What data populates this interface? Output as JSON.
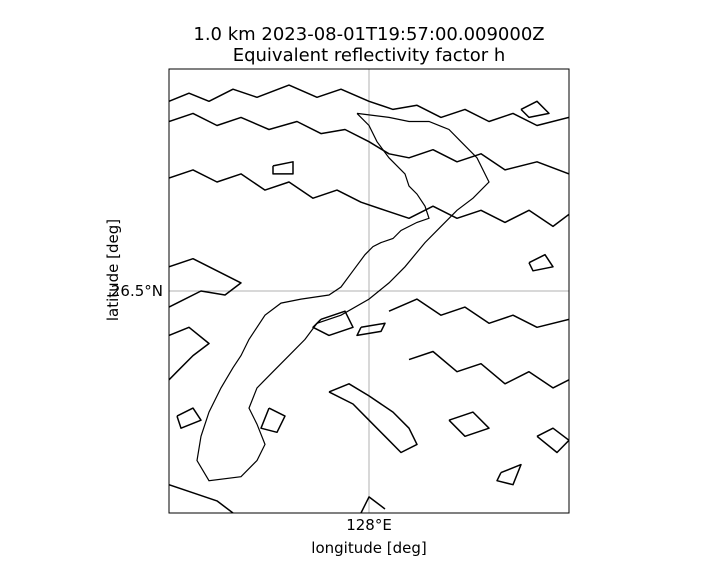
{
  "chart_data": {
    "type": "contour",
    "title_line1": "1.0 km 2023-08-01T19:57:00.009000Z",
    "title_line2": "Equivalent reflectivity factor h",
    "xlabel": "longitude [deg]",
    "ylabel": "latitude [deg]",
    "x_ticks": [
      {
        "value": 128.0,
        "label": "128°E"
      }
    ],
    "y_ticks": [
      {
        "value": 26.5,
        "label": "26.5°N"
      }
    ],
    "xlim": [
      127.5,
      128.5
    ],
    "ylim": [
      25.95,
      27.05
    ],
    "grid": true,
    "line_color": "#000000",
    "coastline": [
      [
        127.97,
        26.94
      ],
      [
        128.0,
        26.91
      ],
      [
        128.02,
        26.87
      ],
      [
        128.05,
        26.83
      ],
      [
        128.09,
        26.79
      ],
      [
        128.1,
        26.76
      ],
      [
        128.12,
        26.74
      ],
      [
        128.14,
        26.71
      ],
      [
        128.15,
        26.68
      ],
      [
        128.12,
        26.67
      ],
      [
        128.08,
        26.65
      ],
      [
        128.06,
        26.63
      ],
      [
        128.03,
        26.62
      ],
      [
        128.01,
        26.61
      ],
      [
        127.99,
        26.59
      ],
      [
        127.96,
        26.55
      ],
      [
        127.93,
        26.51
      ],
      [
        127.9,
        26.49
      ],
      [
        127.83,
        26.48
      ],
      [
        127.78,
        26.47
      ],
      [
        127.74,
        26.44
      ],
      [
        127.72,
        26.41
      ],
      [
        127.7,
        26.38
      ],
      [
        127.68,
        26.34
      ],
      [
        127.66,
        26.31
      ],
      [
        127.63,
        26.26
      ],
      [
        127.6,
        26.2
      ],
      [
        127.58,
        26.14
      ],
      [
        127.57,
        26.08
      ],
      [
        127.6,
        26.03
      ],
      [
        127.68,
        26.04
      ],
      [
        127.72,
        26.08
      ],
      [
        127.74,
        26.12
      ],
      [
        127.72,
        26.17
      ],
      [
        127.7,
        26.21
      ],
      [
        127.72,
        26.26
      ],
      [
        127.76,
        26.3
      ],
      [
        127.8,
        26.34
      ],
      [
        127.84,
        26.38
      ],
      [
        127.87,
        26.42
      ],
      [
        127.93,
        26.44
      ],
      [
        128.0,
        26.48
      ],
      [
        128.05,
        26.52
      ],
      [
        128.09,
        26.56
      ],
      [
        128.14,
        26.62
      ],
      [
        128.18,
        26.66
      ],
      [
        128.22,
        26.7
      ],
      [
        128.26,
        26.73
      ],
      [
        128.3,
        26.77
      ],
      [
        128.27,
        26.83
      ],
      [
        128.23,
        26.87
      ],
      [
        128.2,
        26.9
      ],
      [
        128.15,
        26.92
      ],
      [
        128.1,
        26.92
      ],
      [
        128.05,
        26.93
      ],
      [
        127.97,
        26.94
      ]
    ],
    "contours": [
      {
        "name": "north-band-1",
        "points": [
          [
            127.5,
            26.97
          ],
          [
            127.55,
            26.99
          ],
          [
            127.6,
            26.97
          ],
          [
            127.66,
            27.0
          ],
          [
            127.72,
            26.98
          ],
          [
            127.8,
            27.01
          ],
          [
            127.87,
            26.98
          ],
          [
            127.93,
            27.0
          ],
          [
            128.0,
            26.97
          ],
          [
            128.06,
            26.95
          ],
          [
            128.12,
            26.96
          ],
          [
            128.18,
            26.93
          ],
          [
            128.24,
            26.95
          ],
          [
            128.3,
            26.92
          ],
          [
            128.36,
            26.94
          ],
          [
            128.42,
            26.91
          ],
          [
            128.5,
            26.93
          ]
        ]
      },
      {
        "name": "north-band-2",
        "points": [
          [
            127.5,
            26.92
          ],
          [
            127.56,
            26.94
          ],
          [
            127.62,
            26.91
          ],
          [
            127.68,
            26.93
          ],
          [
            127.75,
            26.9
          ],
          [
            127.82,
            26.92
          ],
          [
            127.88,
            26.89
          ],
          [
            127.94,
            26.9
          ],
          [
            128.0,
            26.87
          ],
          [
            128.05,
            26.84
          ],
          [
            128.1,
            26.83
          ],
          [
            128.16,
            26.85
          ],
          [
            128.22,
            26.82
          ],
          [
            128.28,
            26.84
          ],
          [
            128.34,
            26.8
          ],
          [
            128.42,
            26.82
          ],
          [
            128.5,
            26.79
          ]
        ]
      },
      {
        "name": "middle-band",
        "points": [
          [
            127.5,
            26.78
          ],
          [
            127.56,
            26.8
          ],
          [
            127.62,
            26.77
          ],
          [
            127.68,
            26.79
          ],
          [
            127.74,
            26.75
          ],
          [
            127.8,
            26.77
          ],
          [
            127.86,
            26.73
          ],
          [
            127.92,
            26.75
          ],
          [
            127.98,
            26.72
          ],
          [
            128.04,
            26.7
          ],
          [
            128.1,
            26.68
          ],
          [
            128.16,
            26.71
          ],
          [
            128.22,
            26.68
          ],
          [
            128.28,
            26.7
          ],
          [
            128.34,
            26.67
          ],
          [
            128.4,
            26.7
          ],
          [
            128.46,
            26.66
          ],
          [
            128.5,
            26.69
          ]
        ]
      },
      {
        "name": "west-bulge",
        "points": [
          [
            127.5,
            26.56
          ],
          [
            127.56,
            26.58
          ],
          [
            127.62,
            26.55
          ],
          [
            127.68,
            26.52
          ],
          [
            127.64,
            26.49
          ],
          [
            127.58,
            26.5
          ],
          [
            127.52,
            26.47
          ],
          [
            127.5,
            26.46
          ]
        ]
      },
      {
        "name": "south-band-1",
        "points": [
          [
            127.5,
            26.39
          ],
          [
            127.55,
            26.41
          ],
          [
            127.6,
            26.37
          ],
          [
            127.56,
            26.34
          ],
          [
            127.52,
            26.3
          ],
          [
            127.5,
            26.28
          ]
        ]
      },
      {
        "name": "south-east-band",
        "points": [
          [
            128.05,
            26.45
          ],
          [
            128.12,
            26.48
          ],
          [
            128.18,
            26.44
          ],
          [
            128.24,
            26.46
          ],
          [
            128.3,
            26.42
          ],
          [
            128.36,
            26.44
          ],
          [
            128.42,
            26.41
          ],
          [
            128.5,
            26.43
          ]
        ]
      },
      {
        "name": "south-east-band-2",
        "points": [
          [
            128.1,
            26.33
          ],
          [
            128.16,
            26.35
          ],
          [
            128.22,
            26.3
          ],
          [
            128.28,
            26.32
          ],
          [
            128.34,
            26.27
          ],
          [
            128.4,
            26.3
          ],
          [
            128.46,
            26.26
          ],
          [
            128.5,
            26.28
          ]
        ]
      },
      {
        "name": "south-center-band",
        "points": [
          [
            127.9,
            26.25
          ],
          [
            127.96,
            26.22
          ],
          [
            128.0,
            26.18
          ],
          [
            128.04,
            26.14
          ],
          [
            128.08,
            26.1
          ],
          [
            128.12,
            26.12
          ],
          [
            128.1,
            26.16
          ],
          [
            128.06,
            26.2
          ],
          [
            128.0,
            26.24
          ],
          [
            127.95,
            26.27
          ],
          [
            127.9,
            26.25
          ]
        ]
      },
      {
        "name": "south-band-2",
        "points": [
          [
            127.5,
            26.02
          ],
          [
            127.56,
            26.0
          ],
          [
            127.62,
            25.98
          ],
          [
            127.66,
            25.95
          ]
        ]
      },
      {
        "name": "south-band-3",
        "points": [
          [
            127.98,
            25.95
          ],
          [
            128.0,
            25.99
          ],
          [
            128.04,
            25.96
          ]
        ]
      },
      {
        "name": "cell-a",
        "points": [
          [
            127.76,
            26.81
          ],
          [
            127.81,
            26.82
          ],
          [
            127.81,
            26.79
          ],
          [
            127.76,
            26.79
          ],
          [
            127.76,
            26.81
          ]
        ]
      },
      {
        "name": "cell-b",
        "points": [
          [
            127.98,
            26.41
          ],
          [
            128.04,
            26.42
          ],
          [
            128.03,
            26.4
          ],
          [
            127.97,
            26.39
          ],
          [
            127.98,
            26.41
          ]
        ]
      },
      {
        "name": "cell-c",
        "points": [
          [
            127.88,
            26.43
          ],
          [
            127.94,
            26.45
          ],
          [
            127.96,
            26.41
          ],
          [
            127.9,
            26.39
          ],
          [
            127.86,
            26.41
          ],
          [
            127.88,
            26.43
          ]
        ]
      },
      {
        "name": "cell-d",
        "points": [
          [
            127.75,
            26.21
          ],
          [
            127.73,
            26.16
          ],
          [
            127.77,
            26.15
          ],
          [
            127.79,
            26.19
          ],
          [
            127.75,
            26.21
          ]
        ]
      },
      {
        "name": "cell-e",
        "points": [
          [
            128.2,
            26.18
          ],
          [
            128.26,
            26.2
          ],
          [
            128.3,
            26.16
          ],
          [
            128.24,
            26.14
          ],
          [
            128.2,
            26.18
          ]
        ]
      },
      {
        "name": "cell-f",
        "points": [
          [
            128.33,
            26.05
          ],
          [
            128.38,
            26.07
          ],
          [
            128.36,
            26.02
          ],
          [
            128.32,
            26.03
          ],
          [
            128.33,
            26.05
          ]
        ]
      },
      {
        "name": "cell-g",
        "points": [
          [
            128.42,
            26.14
          ],
          [
            128.46,
            26.16
          ],
          [
            128.5,
            26.13
          ],
          [
            128.47,
            26.1
          ],
          [
            128.42,
            26.14
          ]
        ]
      },
      {
        "name": "cell-h",
        "points": [
          [
            127.52,
            26.19
          ],
          [
            127.56,
            26.21
          ],
          [
            127.58,
            26.18
          ],
          [
            127.53,
            26.16
          ],
          [
            127.52,
            26.19
          ]
        ]
      },
      {
        "name": "cell-i",
        "points": [
          [
            128.4,
            26.57
          ],
          [
            128.44,
            26.59
          ],
          [
            128.46,
            26.56
          ],
          [
            128.41,
            26.55
          ],
          [
            128.4,
            26.57
          ]
        ]
      },
      {
        "name": "cell-j",
        "points": [
          [
            128.38,
            26.95
          ],
          [
            128.42,
            26.97
          ],
          [
            128.45,
            26.94
          ],
          [
            128.4,
            26.93
          ],
          [
            128.38,
            26.95
          ]
        ]
      }
    ]
  }
}
